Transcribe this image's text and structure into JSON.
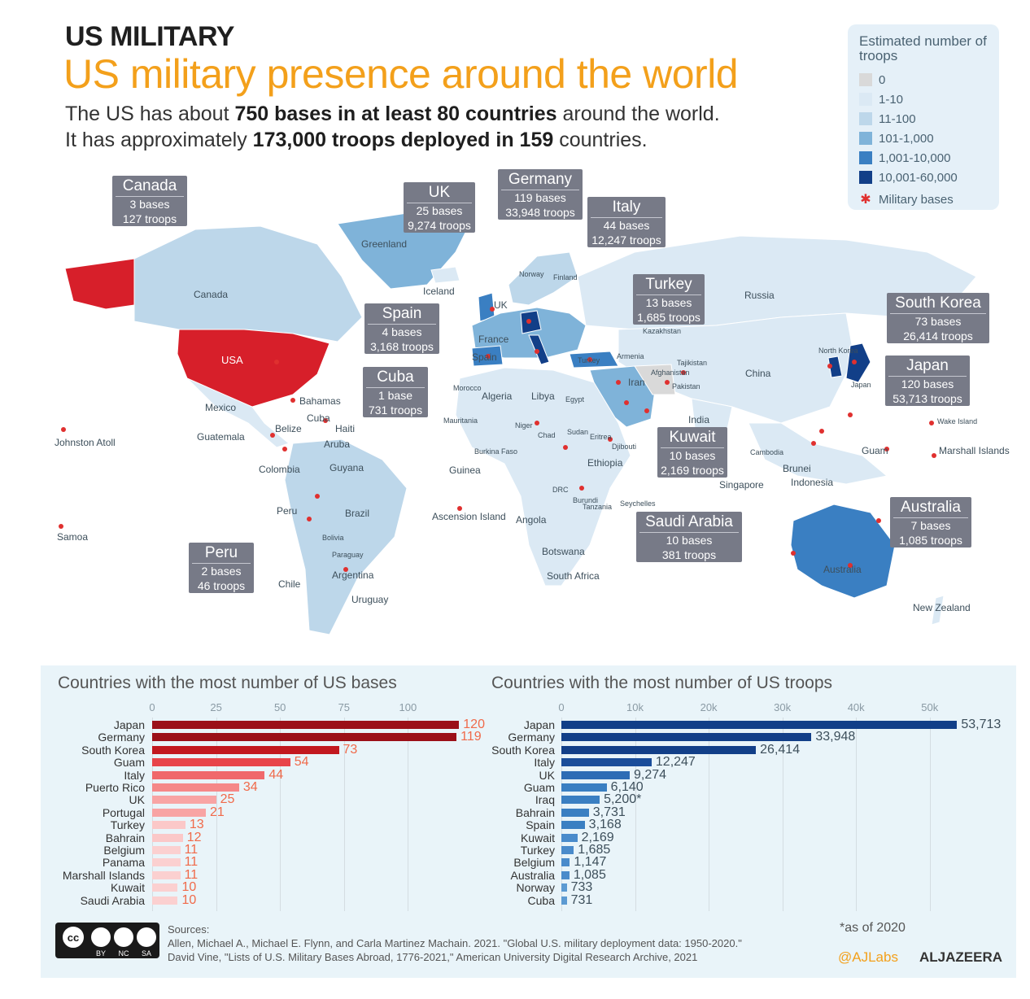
{
  "header": {
    "kicker": "US MILITARY",
    "title": "US military presence around the world",
    "intro_line1": {
      "a": "The US has about ",
      "b": "750 bases in at least 80 countries",
      "c": " around the world."
    },
    "intro_line2": {
      "a": "It has approximately ",
      "b": "173,000 troops deployed in 159",
      "c": " countries."
    }
  },
  "legend": {
    "title": "Estimated number of troops",
    "items": [
      {
        "label": "0",
        "color": "#d9d9d9"
      },
      {
        "label": "1-10",
        "color": "#dbe9f4"
      },
      {
        "label": "11-100",
        "color": "#bdd7ea"
      },
      {
        "label": "101-1,000",
        "color": "#7fb3d9"
      },
      {
        "label": "1,001-10,000",
        "color": "#3a7fc2"
      },
      {
        "label": "10,001-60,000",
        "color": "#123f88"
      }
    ],
    "bases_label": "Military bases",
    "bases_color": "#e0302f"
  },
  "map_labels": [
    "Canada",
    "Greenland",
    "Iceland",
    "Norway",
    "Finland",
    "Russia",
    "UK",
    "France",
    "Spain",
    "Kazakhstan",
    "USA",
    "Mexico",
    "Bahamas",
    "Cuba",
    "Belize",
    "Haiti",
    "Guatemala",
    "Aruba",
    "Colombia",
    "Guyana",
    "Peru",
    "Brazil",
    "Bolivia",
    "Paraguay",
    "Argentina",
    "Chile",
    "Uruguay",
    "Johnston Atoll",
    "Samoa",
    "Morocco",
    "Algeria",
    "Libya",
    "Egypt",
    "Mauritania",
    "Niger",
    "Chad",
    "Sudan",
    "Eritrea",
    "Burkina Faso",
    "Guinea",
    "Ethiopia",
    "Djibouti",
    "DRC",
    "Burundi",
    "Tanzania",
    "Seychelles",
    "Ascension Island",
    "Angola",
    "Botswana",
    "South Africa",
    "Turkey",
    "Armenia",
    "Iran",
    "Afghanistan",
    "Pakistan",
    "Tajikistan",
    "India",
    "China",
    "North Korea",
    "Japan",
    "Wake Island",
    "Guam",
    "Marshall Islands",
    "Cambodia",
    "Brunei",
    "Indonesia",
    "Singapore",
    "Australia",
    "New Zealand"
  ],
  "callouts": [
    {
      "name": "Canada",
      "bases": "3 bases",
      "troops": "127 troops"
    },
    {
      "name": "UK",
      "bases": "25 bases",
      "troops": "9,274 troops"
    },
    {
      "name": "Germany",
      "bases": "119 bases",
      "troops": "33,948 troops"
    },
    {
      "name": "Italy",
      "bases": "44 bases",
      "troops": "12,247 troops"
    },
    {
      "name": "Turkey",
      "bases": "13 bases",
      "troops": "1,685 troops"
    },
    {
      "name": "Spain",
      "bases": "4 bases",
      "troops": "3,168 troops"
    },
    {
      "name": "South Korea",
      "bases": "73 bases",
      "troops": "26,414 troops"
    },
    {
      "name": "Japan",
      "bases": "120 bases",
      "troops": "53,713 troops"
    },
    {
      "name": "Cuba",
      "bases": "1 base",
      "troops": "731 troops"
    },
    {
      "name": "Kuwait",
      "bases": "10 bases",
      "troops": "2,169 troops"
    },
    {
      "name": "Saudi Arabia",
      "bases": "10 bases",
      "troops": "381 troops"
    },
    {
      "name": "Australia",
      "bases": "7 bases",
      "troops": "1,085 troops"
    },
    {
      "name": "Peru",
      "bases": "2 bases",
      "troops": "46 troops"
    }
  ],
  "chart_data": [
    {
      "type": "bar",
      "orientation": "horizontal",
      "title": "Countries with the most number of US bases",
      "categories": [
        "Japan",
        "Germany",
        "South Korea",
        "Guam",
        "Italy",
        "Puerto Rico",
        "UK",
        "Portugal",
        "Turkey",
        "Bahrain",
        "Belgium",
        "Panama",
        "Marshall Islands",
        "Kuwait",
        "Saudi Arabia"
      ],
      "values": [
        120,
        119,
        73,
        54,
        44,
        34,
        25,
        21,
        13,
        12,
        11,
        11,
        11,
        10,
        10
      ],
      "value_labels": [
        "120",
        "119",
        "73",
        "54",
        "44",
        "34",
        "25",
        "21",
        "13",
        "12",
        "11",
        "11",
        "11",
        "10",
        "10"
      ],
      "xlim": [
        0,
        125
      ],
      "ticks": [
        0,
        25,
        50,
        75,
        100
      ],
      "tick_labels": [
        "0",
        "25",
        "50",
        "75",
        "100"
      ],
      "colors": [
        "#9b0f18",
        "#9b0f18",
        "#c2181f",
        "#e8444a",
        "#f0686b",
        "#f58888",
        "#f8a4a4",
        "#f8a4a4",
        "#fbc8c8",
        "#fbc8c8",
        "#fbd0d0",
        "#fbd0d0",
        "#fbd0d0",
        "#fbd0d0",
        "#fbd0d0"
      ],
      "label_color": "#f06a4a",
      "grid": true
    },
    {
      "type": "bar",
      "orientation": "horizontal",
      "title": "Countries with the most number of US troops",
      "categories": [
        "Japan",
        "Germany",
        "South Korea",
        "Italy",
        "UK",
        "Guam",
        "Iraq",
        "Bahrain",
        "Spain",
        "Kuwait",
        "Turkey",
        "Belgium",
        "Australia",
        "Norway",
        "Cuba"
      ],
      "values": [
        53713,
        33948,
        26414,
        12247,
        9274,
        6140,
        5200,
        3731,
        3168,
        2169,
        1685,
        1147,
        1085,
        733,
        731
      ],
      "value_labels": [
        "53,713",
        "33,948",
        "26,414",
        "12,247",
        "9,274",
        "6,140",
        "5,200*",
        "3,731",
        "3,168",
        "2,169",
        "1,685",
        "1,147",
        "1,085",
        "733",
        "731"
      ],
      "xlim": [
        0,
        55000
      ],
      "ticks": [
        0,
        10000,
        20000,
        30000,
        40000,
        50000
      ],
      "tick_labels": [
        "0",
        "10k",
        "20k",
        "30k",
        "40k",
        "50k"
      ],
      "colors": [
        "#123f88",
        "#123f88",
        "#123f88",
        "#1a4d9a",
        "#2d6cb5",
        "#3a7fc2",
        "#3a7fc2",
        "#3a7fc2",
        "#3a7fc2",
        "#4a8bcb",
        "#4a8bcb",
        "#4a8bcb",
        "#4a8bcb",
        "#5c9ad2",
        "#5c9ad2"
      ],
      "label_color": "#3d4f5b",
      "grid": true
    }
  ],
  "footer": {
    "sources_label": "Sources:",
    "source1": "Allen, Michael A., Michael E. Flynn, and Carla Martinez Machain. 2021. \"Global U.S. military deployment data: 1950-2020.\"",
    "source2": "David Vine, \"Lists of U.S. Military Bases Abroad, 1776-2021,\" American University Digital Research Archive, 2021",
    "footnote": "*as of 2020",
    "handle": "@AJLabs",
    "brand": "ALJAZEERA",
    "cc_labels": [
      "BY",
      "NC",
      "SA"
    ]
  }
}
